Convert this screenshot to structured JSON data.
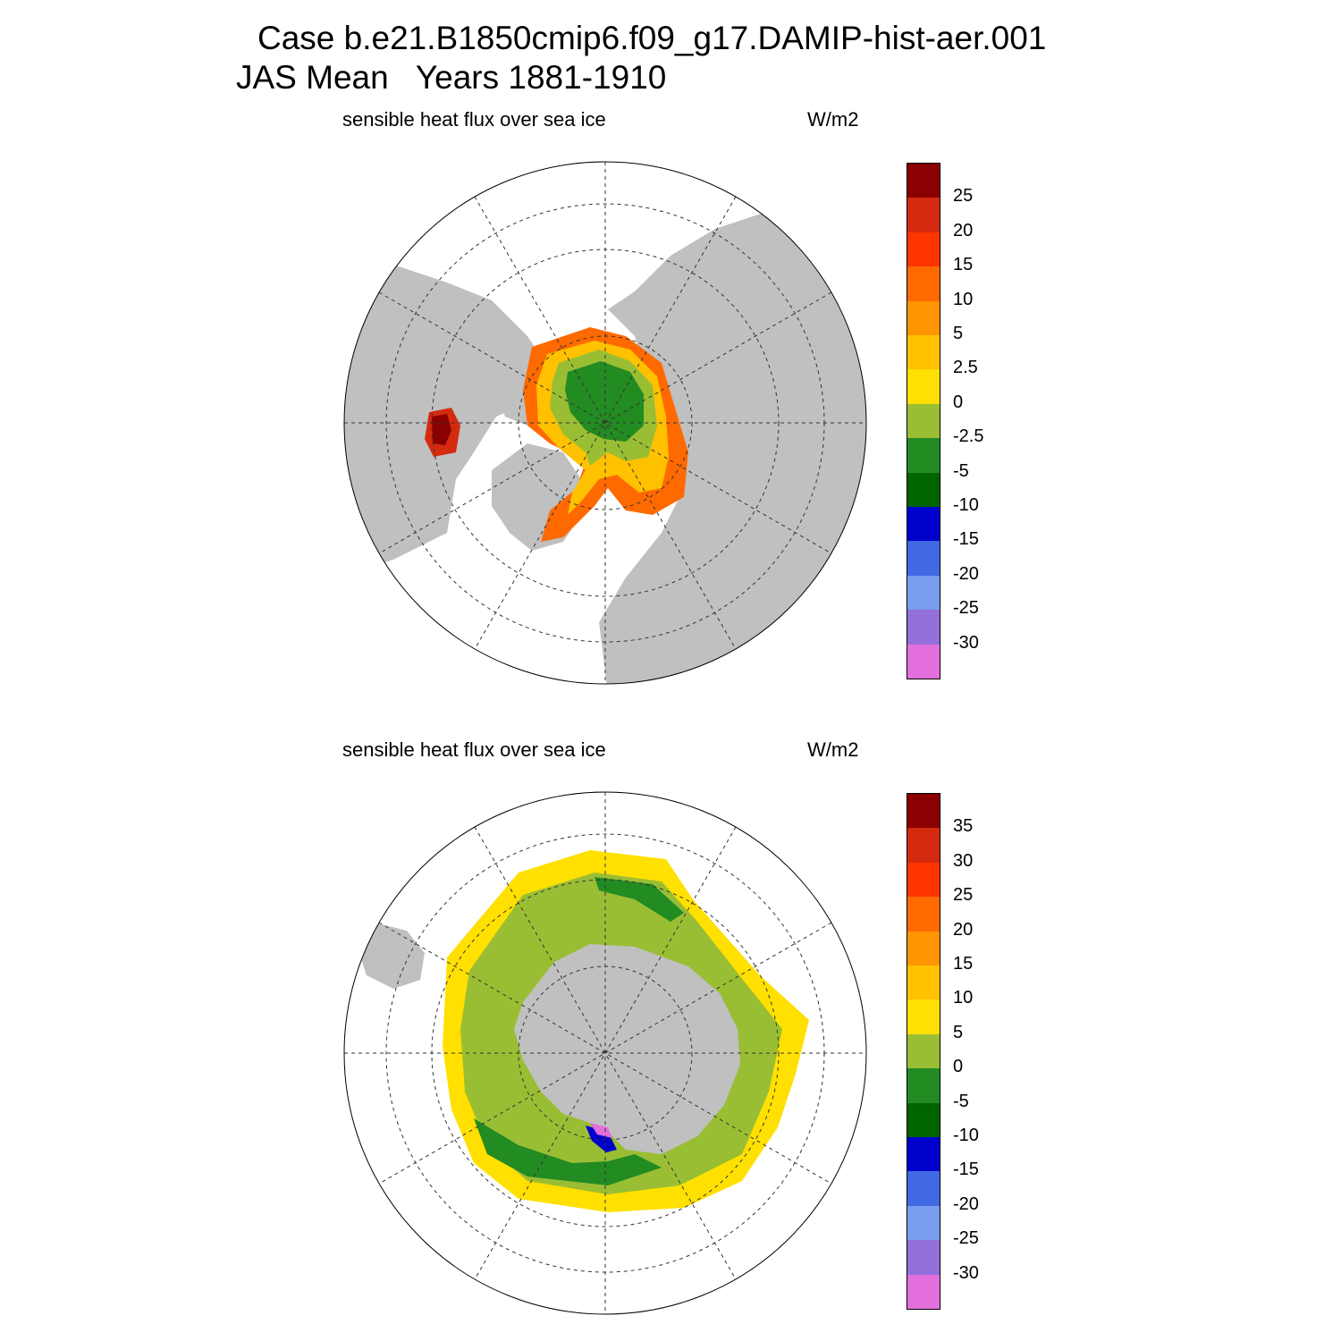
{
  "title": {
    "line1": "Case b.e21.B1850cmip6.f09_g17.DAMIP-hist-aer.001",
    "line2": "JAS Mean   Years 1881-1910"
  },
  "panels": [
    {
      "id": "north",
      "variable": "sensible heat flux over sea ice",
      "units": "W/m2",
      "colorbar": {
        "colors": [
          "#e26fdc",
          "#9370db",
          "#7a9cf0",
          "#4169e1",
          "#0000cd",
          "#006400",
          "#228b22",
          "#9abe33",
          "#ffe000",
          "#ffc100",
          "#ff9500",
          "#ff6a00",
          "#ff3500",
          "#d42a0f",
          "#8b0000"
        ],
        "labels": [
          "-30",
          "-25",
          "-20",
          "-15",
          "-10",
          "-5",
          "-2.5",
          "0",
          "2.5",
          "5",
          "10",
          "15",
          "20",
          "25"
        ]
      }
    },
    {
      "id": "south",
      "variable": "sensible heat flux over sea ice",
      "units": "W/m2",
      "colorbar": {
        "colors": [
          "#e26fdc",
          "#9370db",
          "#7a9cf0",
          "#4169e1",
          "#0000cd",
          "#006400",
          "#228b22",
          "#9abe33",
          "#ffe000",
          "#ffc100",
          "#ff9500",
          "#ff6a00",
          "#ff3500",
          "#d42a0f",
          "#8b0000"
        ],
        "labels": [
          "-30",
          "-25",
          "-20",
          "-15",
          "-10",
          "-5",
          "0",
          "5",
          "10",
          "15",
          "20",
          "25",
          "30",
          "35"
        ]
      }
    }
  ],
  "map_colors": {
    "land": "#c0c0c0",
    "ocean": "#ffffff",
    "grid": "#333333"
  }
}
